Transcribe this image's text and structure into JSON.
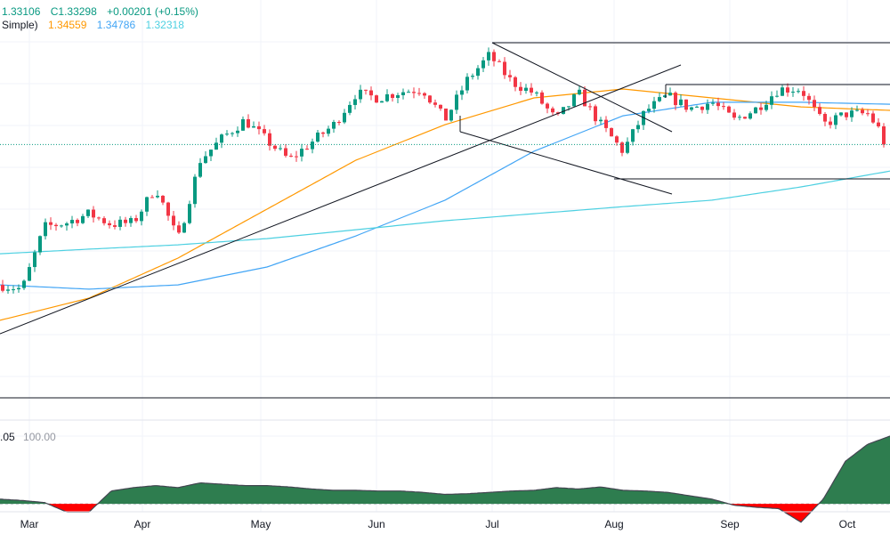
{
  "legend": {
    "low": "1.33106",
    "close": "C1.33298",
    "change": "+0.00201 (+0.15%)",
    "ma_label": "Simple)",
    "ma50_value": "1.34559",
    "ma100_value": "1.34786",
    "ma200_value": "1.32318"
  },
  "indicator": {
    "value": ".05",
    "level": "100.00"
  },
  "colors": {
    "up": "#089981",
    "down": "#f23645",
    "ma50": "#ff9800",
    "ma100": "#42a5f5",
    "ma200": "#4dd0e1",
    "ind_pos": "#2e7d4f",
    "ind_neg": "#ff0000"
  },
  "chart_data": {
    "type": "candlestick",
    "x_ticks": [
      "Mar",
      "Apr",
      "May",
      "Jun",
      "Jul",
      "Aug",
      "Sep",
      "Oct"
    ],
    "ylim": [
      1.24,
      1.3864
    ],
    "close_path": [
      1.2811,
      1.2795,
      1.3025,
      1.3041,
      1.3074,
      1.3035,
      1.3041,
      1.3173,
      1.2976,
      1.3272,
      1.3354,
      1.342,
      1.3344,
      1.3272,
      1.3338,
      1.3403,
      1.3519,
      1.3502,
      1.3525,
      1.3535,
      1.342,
      1.3568,
      1.366,
      1.3561,
      1.3519,
      1.342,
      1.3519,
      1.3403,
      1.3305,
      1.3453,
      1.3509,
      1.3463,
      1.3486,
      1.342,
      1.3463,
      1.3535,
      1.3535,
      1.3403,
      1.3443,
      1.3443,
      1.333
    ],
    "last_price": 1.33298,
    "moving_averages": [
      {
        "color": "#ff9800",
        "values": [
          1.268,
          1.2762,
          1.291,
          1.3091,
          1.3272,
          1.3403,
          1.3502,
          1.3535,
          1.3502,
          1.3469,
          1.34559
        ]
      },
      {
        "color": "#42a5f5",
        "values": [
          1.2811,
          1.2795,
          1.2811,
          1.2877,
          1.2992,
          1.3124,
          1.3305,
          1.3436,
          1.3486,
          1.3486,
          1.34786
        ]
      },
      {
        "color": "#4dd0e1",
        "values": [
          1.2926,
          1.2943,
          1.2959,
          1.2982,
          1.3015,
          1.3048,
          1.3074,
          1.31,
          1.3124,
          1.3173,
          1.32318
        ]
      }
    ],
    "oscillator": {
      "ylim": [
        -40,
        100
      ],
      "values": [
        7,
        5,
        2,
        -12,
        -12,
        19,
        24,
        27,
        24,
        31,
        29,
        27,
        27,
        25,
        22,
        20,
        20,
        19,
        19,
        17,
        14,
        15,
        17,
        19,
        20,
        24,
        22,
        25,
        20,
        19,
        17,
        12,
        7,
        -2,
        -5,
        -7,
        -27,
        7,
        63,
        88,
        100
      ]
    }
  }
}
